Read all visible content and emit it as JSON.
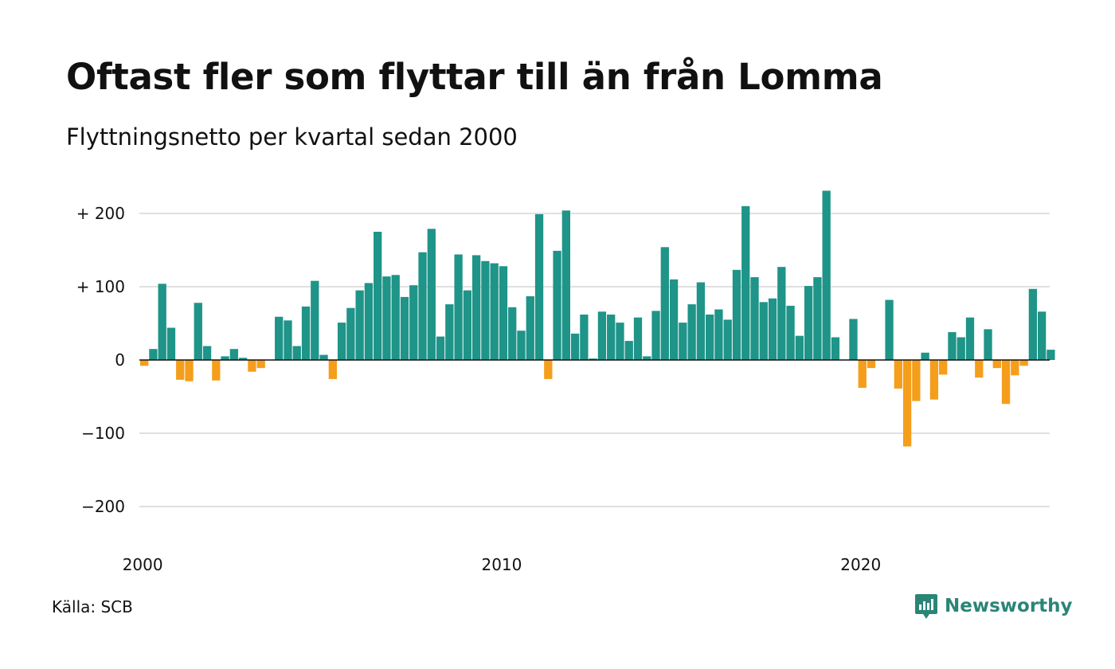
{
  "title": "Oftast fler som flyttar till än från Lomma",
  "subtitle": "Flyttningsnetto per kvartal sedan 2000",
  "source": "Källa: SCB",
  "logo": {
    "text": "Newsworthy",
    "icon": "newsworthy-logo-icon"
  },
  "colors": {
    "positive": "#1f9488",
    "negative": "#f59e1c",
    "grid": "#e0e0e0",
    "axis": "#111111"
  },
  "chart_data": {
    "type": "bar",
    "ylim": [
      -220,
      240
    ],
    "y_ticks": [
      {
        "value": 200,
        "label": "+ 200"
      },
      {
        "value": 100,
        "label": "+ 100"
      },
      {
        "value": 0,
        "label": "0"
      },
      {
        "value": -100,
        "label": "−100"
      },
      {
        "value": -200,
        "label": "−200"
      }
    ],
    "x_ticks": [
      {
        "index": 0,
        "label": "2000"
      },
      {
        "index": 40,
        "label": "2010"
      },
      {
        "index": 80,
        "label": "2020"
      }
    ],
    "x_start": "2000 Q1",
    "x_step": "quarter",
    "grid": true,
    "values": [
      -8,
      15,
      104,
      44,
      -27,
      -29,
      78,
      19,
      -28,
      5,
      15,
      3,
      -16,
      -11,
      0,
      59,
      54,
      19,
      73,
      108,
      7,
      -26,
      51,
      71,
      95,
      105,
      175,
      114,
      116,
      86,
      102,
      147,
      179,
      32,
      76,
      144,
      95,
      143,
      135,
      132,
      128,
      72,
      40,
      87,
      199,
      -26,
      149,
      204,
      36,
      62,
      2,
      66,
      62,
      51,
      26,
      58,
      5,
      67,
      154,
      110,
      51,
      76,
      106,
      62,
      69,
      55,
      123,
      210,
      113,
      79,
      84,
      127,
      74,
      33,
      101,
      113,
      231,
      31,
      0,
      56,
      -38,
      -11,
      0,
      82,
      -39,
      -118,
      -56,
      10,
      -54,
      -20,
      38,
      31,
      58,
      -24,
      42,
      -11,
      -60,
      -21,
      -8,
      97,
      66,
      14
    ]
  }
}
